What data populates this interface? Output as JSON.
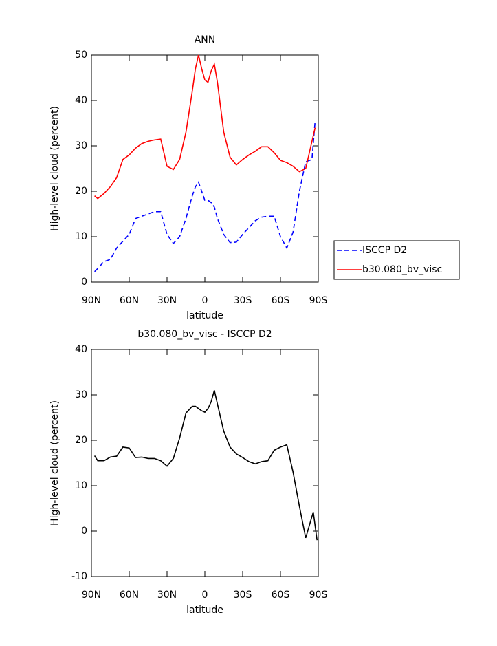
{
  "chart_data": [
    {
      "type": "line",
      "title": "ANN",
      "xlabel": "latitude",
      "ylabel": "High-level cloud (percent)",
      "x": [
        87.5,
        85,
        80,
        75,
        70,
        65,
        60,
        55,
        50,
        45,
        40,
        35,
        30,
        25,
        20,
        15,
        10,
        7.5,
        5,
        2.5,
        0,
        -2.5,
        -5,
        -7.5,
        -10,
        -15,
        -20,
        -25,
        -30,
        -35,
        -40,
        -45,
        -50,
        -55,
        -60,
        -65,
        -70,
        -75,
        -80,
        -85,
        -87.5
      ],
      "series": [
        {
          "name": "ISCCP D2",
          "color": "#0000ff",
          "dash": true,
          "values": [
            2.3,
            3,
            4.5,
            5,
            7.5,
            9,
            10.5,
            14,
            14.5,
            15,
            15.5,
            15.5,
            10.5,
            8.5,
            10,
            14,
            19,
            21,
            22,
            20,
            18,
            18,
            17.5,
            16.5,
            14,
            10.5,
            8.7,
            8.8,
            10.5,
            12,
            13.5,
            14.3,
            14.5,
            14.5,
            10,
            7.5,
            11,
            20,
            26.5,
            27,
            35.5
          ]
        },
        {
          "name": "b30.080_bv_visc",
          "color": "#ff0000",
          "dash": false,
          "values": [
            19,
            18.4,
            19.5,
            21,
            23,
            27,
            28,
            29.5,
            30.5,
            31,
            31.3,
            31.5,
            25.5,
            24.8,
            27,
            33,
            42,
            47,
            50,
            47,
            44.5,
            44,
            46.5,
            48,
            44,
            33,
            27.5,
            25.8,
            27,
            28,
            28.8,
            29.8,
            29.8,
            28.5,
            26.8,
            26.3,
            25.5,
            24.3,
            25,
            31,
            34
          ]
        }
      ],
      "xlim": [
        90,
        -90
      ],
      "xticks": [
        {
          "value": 90,
          "label": "90N"
        },
        {
          "value": 60,
          "label": "60N"
        },
        {
          "value": 30,
          "label": "30N"
        },
        0,
        {
          "value": -30,
          "label": "30S"
        },
        {
          "value": -60,
          "label": "60S"
        },
        {
          "value": -90,
          "label": "90S"
        }
      ],
      "ylim": [
        0,
        50
      ],
      "yticks": [
        0,
        10,
        20,
        30,
        40,
        50
      ],
      "legend": "right"
    },
    {
      "type": "line",
      "title": "b30.080_bv_visc - ISCCP D2",
      "xlabel": "latitude",
      "ylabel": "High-level cloud (percent)",
      "x": [
        87.5,
        85,
        80,
        75,
        70,
        65,
        60,
        55,
        50,
        45,
        40,
        35,
        30,
        25,
        20,
        15,
        10,
        7.5,
        5,
        2.5,
        0,
        -2.5,
        -5,
        -7.5,
        -10,
        -15,
        -20,
        -25,
        -30,
        -35,
        -40,
        -45,
        -50,
        -55,
        -60,
        -65,
        -70,
        -75,
        -80,
        -86,
        -89
      ],
      "series": [
        {
          "color": "#000000",
          "dash": false,
          "values": [
            16.6,
            15.5,
            15.5,
            16.3,
            16.5,
            18.5,
            18.3,
            16.2,
            16.3,
            16,
            16,
            15.5,
            14.3,
            16,
            20.5,
            26,
            27.5,
            27.5,
            27,
            26.5,
            26.2,
            27,
            28.5,
            31,
            28,
            22,
            18.5,
            17,
            16.2,
            15.3,
            14.8,
            15.3,
            15.5,
            17.8,
            18.5,
            19,
            13,
            5.5,
            -1.5,
            4.2,
            -2
          ]
        }
      ],
      "xlim": [
        90,
        -90
      ],
      "xticks": [
        {
          "value": 90,
          "label": "90N"
        },
        {
          "value": 60,
          "label": "60N"
        },
        {
          "value": 30,
          "label": "30N"
        },
        0,
        {
          "value": -30,
          "label": "30S"
        },
        {
          "value": -60,
          "label": "60S"
        },
        {
          "value": -90,
          "label": "90S"
        }
      ],
      "ylim": [
        -10,
        40
      ],
      "yticks": [
        -10,
        0,
        10,
        20,
        30,
        40
      ]
    }
  ]
}
